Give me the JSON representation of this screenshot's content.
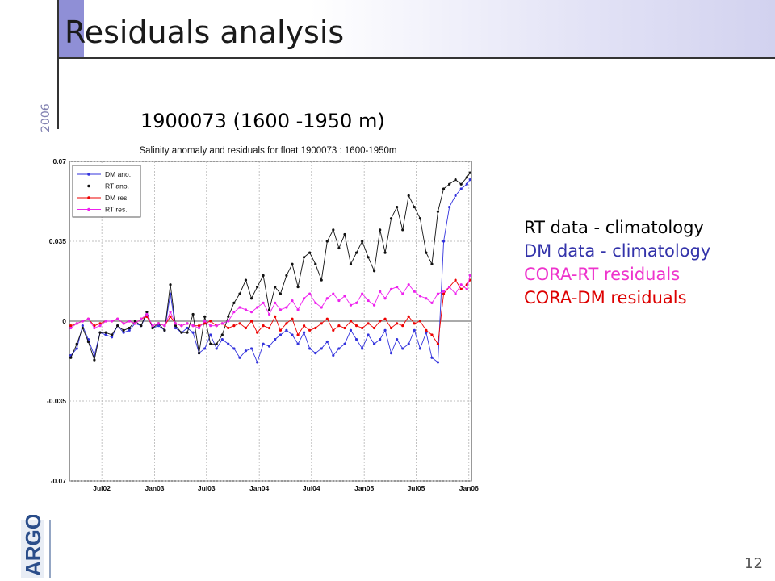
{
  "slide": {
    "title": "Residuals analysis",
    "year": "2006",
    "subtitle": "1900073 (1600 -1950 m)",
    "page_number": "12",
    "logo_text": "ARGO",
    "notes": [
      {
        "text": "RT data - climatology",
        "color": "#000000"
      },
      {
        "text": "DM data - climatology",
        "color": "#3333aa"
      },
      {
        "text": "CORA-RT residuals",
        "color": "#ee33cc"
      },
      {
        "text": "CORA-DM residuals",
        "color": "#dd0000"
      }
    ]
  },
  "chart_data": {
    "type": "line",
    "title": "Salinity anomaly and residuals for float 1900073 : 1600-1950m",
    "xlabel": "",
    "ylabel": "",
    "x_tick_labels": [
      "Jul02",
      "Jan03",
      "Jul03",
      "Jan04",
      "Jul04",
      "Jan05",
      "Jul05",
      "Jan06"
    ],
    "y_ticks": [
      0.07,
      0.035,
      0,
      -0.035,
      -0.07
    ],
    "y_tick_labels": [
      "0.07",
      "0.035",
      "0",
      "-0.035",
      "-0.07"
    ],
    "ylim": [
      -0.07,
      0.07
    ],
    "grid": true,
    "legend_position": "top-left",
    "x": [
      "2002-03-15",
      "2002-04-05",
      "2002-04-25",
      "2002-05-15",
      "2002-06-05",
      "2002-06-25",
      "2002-07-15",
      "2002-08-05",
      "2002-08-25",
      "2002-09-15",
      "2002-10-05",
      "2002-10-25",
      "2002-11-15",
      "2002-12-05",
      "2002-12-25",
      "2003-01-15",
      "2003-02-05",
      "2003-02-25",
      "2003-03-15",
      "2003-04-05",
      "2003-04-25",
      "2003-05-15",
      "2003-06-05",
      "2003-06-25",
      "2003-07-15",
      "2003-08-05",
      "2003-08-25",
      "2003-09-15",
      "2003-10-05",
      "2003-10-25",
      "2003-11-15",
      "2003-12-05",
      "2003-12-25",
      "2004-01-15",
      "2004-02-05",
      "2004-02-25",
      "2004-03-15",
      "2004-04-05",
      "2004-04-25",
      "2004-05-15",
      "2004-06-05",
      "2004-06-25",
      "2004-07-15",
      "2004-08-05",
      "2004-08-25",
      "2004-09-15",
      "2004-10-05",
      "2004-10-25",
      "2004-11-15",
      "2004-12-05",
      "2004-12-25",
      "2005-01-15",
      "2005-02-05",
      "2005-02-25",
      "2005-03-15",
      "2005-04-05",
      "2005-04-25",
      "2005-05-15",
      "2005-06-05",
      "2005-06-25",
      "2005-07-15",
      "2005-08-05",
      "2005-08-25",
      "2005-09-15",
      "2005-10-05",
      "2005-10-25",
      "2005-11-15",
      "2005-12-05",
      "2005-12-25",
      "2006-01-05"
    ],
    "series": [
      {
        "name": "DM ano.",
        "color": "#3333dd",
        "values": [
          -0.015,
          -0.012,
          -0.002,
          -0.008,
          -0.015,
          -0.005,
          -0.006,
          -0.007,
          -0.002,
          -0.005,
          -0.004,
          -0.001,
          -0.002,
          0.003,
          -0.003,
          -0.002,
          -0.004,
          0.012,
          -0.003,
          -0.005,
          -0.003,
          -0.005,
          -0.014,
          -0.012,
          -0.006,
          -0.012,
          -0.008,
          -0.01,
          -0.012,
          -0.016,
          -0.013,
          -0.012,
          -0.018,
          -0.01,
          -0.011,
          -0.008,
          -0.006,
          -0.004,
          -0.006,
          -0.01,
          -0.005,
          -0.012,
          -0.014,
          -0.012,
          -0.009,
          -0.015,
          -0.012,
          -0.01,
          -0.004,
          -0.008,
          -0.012,
          -0.006,
          -0.01,
          -0.008,
          -0.004,
          -0.014,
          -0.008,
          -0.012,
          -0.01,
          -0.004,
          -0.012,
          -0.005,
          -0.016,
          -0.018,
          0.035,
          0.05,
          0.055,
          0.058,
          0.06,
          0.062
        ]
      },
      {
        "name": "RT ano.",
        "color": "#111111",
        "values": [
          -0.016,
          -0.01,
          -0.003,
          -0.009,
          -0.017,
          -0.005,
          -0.005,
          -0.006,
          -0.002,
          -0.004,
          -0.003,
          0.0,
          -0.002,
          0.004,
          -0.003,
          -0.001,
          -0.004,
          0.016,
          -0.002,
          -0.005,
          -0.005,
          0.003,
          -0.014,
          0.002,
          -0.01,
          -0.01,
          -0.006,
          0.002,
          0.008,
          0.012,
          0.018,
          0.01,
          0.015,
          0.02,
          0.005,
          0.015,
          0.012,
          0.02,
          0.025,
          0.015,
          0.028,
          0.03,
          0.025,
          0.018,
          0.035,
          0.04,
          0.032,
          0.038,
          0.025,
          0.03,
          0.035,
          0.028,
          0.022,
          0.04,
          0.03,
          0.045,
          0.05,
          0.04,
          0.055,
          0.05,
          0.045,
          0.03,
          0.025,
          0.048,
          0.058,
          0.06,
          0.062,
          0.06,
          0.063,
          0.065
        ]
      },
      {
        "name": "DM res.",
        "color": "#ee0000",
        "values": [
          -0.002,
          -0.001,
          0.0,
          0.001,
          -0.002,
          -0.001,
          0.0,
          0.0,
          0.001,
          -0.001,
          0.0,
          -0.001,
          0.001,
          0.002,
          -0.002,
          -0.001,
          -0.002,
          0.002,
          -0.001,
          -0.002,
          -0.001,
          -0.002,
          -0.002,
          -0.001,
          0.0,
          -0.002,
          -0.001,
          -0.003,
          -0.002,
          -0.001,
          -0.003,
          0.0,
          -0.005,
          -0.002,
          -0.003,
          0.002,
          -0.004,
          -0.001,
          0.001,
          -0.006,
          -0.002,
          -0.004,
          -0.003,
          -0.001,
          0.001,
          -0.004,
          -0.002,
          -0.003,
          0.0,
          -0.002,
          -0.003,
          -0.001,
          -0.003,
          0.0,
          0.001,
          -0.003,
          -0.001,
          -0.002,
          0.002,
          -0.001,
          0.0,
          -0.004,
          -0.006,
          -0.01,
          0.012,
          0.015,
          0.018,
          0.014,
          0.016,
          0.018
        ]
      },
      {
        "name": "RT res.",
        "color": "#ee22ee",
        "values": [
          -0.003,
          -0.001,
          0.0,
          0.001,
          -0.003,
          -0.002,
          0.0,
          0.0,
          0.001,
          -0.001,
          0.0,
          -0.001,
          0.001,
          0.003,
          -0.002,
          -0.001,
          -0.002,
          0.004,
          -0.001,
          -0.002,
          -0.001,
          -0.002,
          -0.003,
          0.0,
          -0.002,
          -0.002,
          -0.001,
          0.0,
          0.004,
          0.006,
          0.005,
          0.004,
          0.006,
          0.008,
          0.003,
          0.008,
          0.005,
          0.006,
          0.009,
          0.005,
          0.01,
          0.012,
          0.008,
          0.006,
          0.01,
          0.012,
          0.009,
          0.011,
          0.007,
          0.008,
          0.012,
          0.009,
          0.007,
          0.013,
          0.01,
          0.014,
          0.015,
          0.012,
          0.016,
          0.013,
          0.011,
          0.01,
          0.008,
          0.012,
          0.013,
          0.015,
          0.012,
          0.016,
          0.014,
          0.02
        ]
      }
    ]
  }
}
